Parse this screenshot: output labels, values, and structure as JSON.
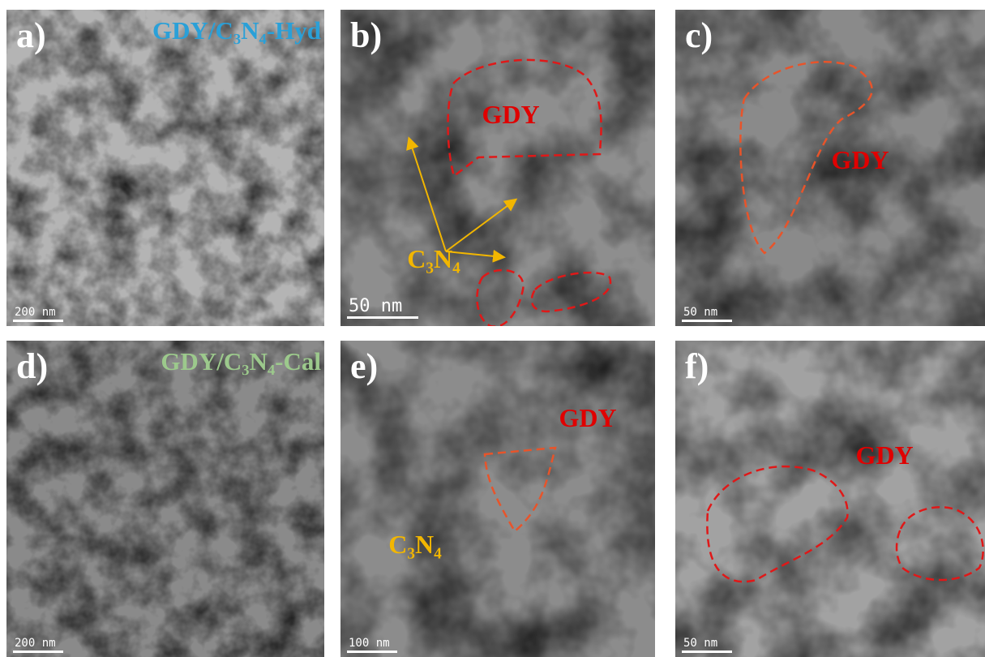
{
  "panels": [
    {
      "label": "a)",
      "caption": "GDY/C₃N₄-Hyd",
      "scale_bar": "200 nm"
    },
    {
      "label": "b)",
      "annotations": [
        "GDY",
        "C₃N₄"
      ],
      "scale_bar": "50 nm"
    },
    {
      "label": "c)",
      "annotations": [
        "GDY"
      ],
      "scale_bar": "50 nm"
    },
    {
      "label": "d)",
      "caption": "GDY/C₃N₄-Cal",
      "scale_bar": "200 nm"
    },
    {
      "label": "e)",
      "annotations": [
        "GDY",
        "C₃N₄"
      ],
      "scale_bar": "100 nm"
    },
    {
      "label": "f)",
      "annotations": [
        "GDY"
      ],
      "scale_bar": "50 nm"
    }
  ]
}
